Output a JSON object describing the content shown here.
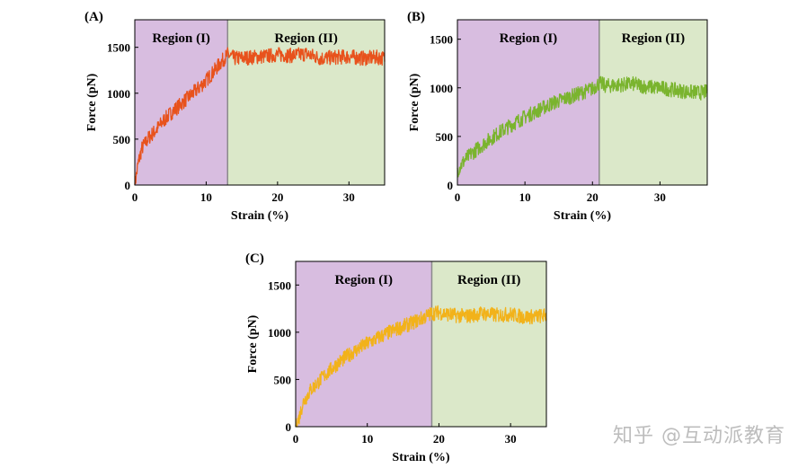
{
  "watermark": "知乎 @互动派教育",
  "chart_data": [
    {
      "type": "line",
      "panel": "(A)",
      "xlabel": "Strain (%)",
      "ylabel": "Force (pN)",
      "xlim": [
        0,
        35
      ],
      "ylim": [
        0,
        1800
      ],
      "xticks": [
        0,
        10,
        20,
        30
      ],
      "yticks": [
        0,
        500,
        1000,
        1500
      ],
      "line_color": "#e8521c",
      "regions": [
        {
          "label": "Region (I)",
          "x_start": 0,
          "x_end": 13,
          "color": "#d8bde0"
        },
        {
          "label": "Region (II)",
          "x_start": 13,
          "x_end": 35,
          "color": "#dbe8c9"
        }
      ],
      "series": [
        {
          "x": [
            0,
            0.5,
            1,
            2,
            3,
            4,
            5,
            6,
            7,
            8,
            9,
            10,
            11,
            12,
            13,
            14,
            16,
            18,
            20,
            22,
            24,
            26,
            28,
            30,
            32,
            34,
            35
          ],
          "values": [
            0,
            250,
            400,
            520,
            600,
            700,
            780,
            850,
            920,
            990,
            1060,
            1140,
            1230,
            1330,
            1420,
            1380,
            1390,
            1400,
            1420,
            1410,
            1430,
            1380,
            1390,
            1400,
            1380,
            1390,
            1380
          ]
        }
      ]
    },
    {
      "type": "line",
      "panel": "(B)",
      "xlabel": "Strain (%)",
      "ylabel": "Force (pN)",
      "xlim": [
        0,
        37
      ],
      "ylim": [
        0,
        1700
      ],
      "xticks": [
        0,
        10,
        20,
        30
      ],
      "yticks": [
        0,
        500,
        1000,
        1500
      ],
      "line_color": "#7ab42e",
      "regions": [
        {
          "label": "Region (I)",
          "x_start": 0,
          "x_end": 21,
          "color": "#d8bde0"
        },
        {
          "label": "Region (II)",
          "x_start": 21,
          "x_end": 37,
          "color": "#dbe8c9"
        }
      ],
      "series": [
        {
          "x": [
            0,
            1,
            2,
            4,
            6,
            8,
            10,
            12,
            14,
            16,
            18,
            20,
            21,
            22,
            24,
            26,
            28,
            30,
            32,
            34,
            36,
            37
          ],
          "values": [
            150,
            250,
            320,
            430,
            530,
            620,
            700,
            770,
            840,
            890,
            940,
            990,
            1050,
            1020,
            1030,
            1040,
            1010,
            1000,
            980,
            960,
            950,
            960
          ]
        }
      ]
    },
    {
      "type": "line",
      "panel": "(C)",
      "xlabel": "Strain (%)",
      "ylabel": "Force (pN)",
      "xlim": [
        0,
        35
      ],
      "ylim": [
        0,
        1750
      ],
      "xticks": [
        0,
        10,
        20,
        30
      ],
      "yticks": [
        0,
        500,
        1000,
        1500
      ],
      "line_color": "#f2b21a",
      "regions": [
        {
          "label": "Region (I)",
          "x_start": 0,
          "x_end": 19,
          "color": "#d8bde0"
        },
        {
          "label": "Region (II)",
          "x_start": 19,
          "x_end": 35,
          "color": "#dbe8c9"
        }
      ],
      "series": [
        {
          "x": [
            0,
            0.5,
            1,
            2,
            4,
            6,
            8,
            10,
            12,
            14,
            16,
            18,
            19,
            20,
            22,
            24,
            26,
            28,
            30,
            32,
            34,
            35
          ],
          "values": [
            0,
            100,
            250,
            380,
            540,
            680,
            790,
            880,
            960,
            1030,
            1090,
            1160,
            1200,
            1210,
            1180,
            1170,
            1200,
            1180,
            1190,
            1160,
            1170,
            1180
          ]
        }
      ]
    }
  ]
}
